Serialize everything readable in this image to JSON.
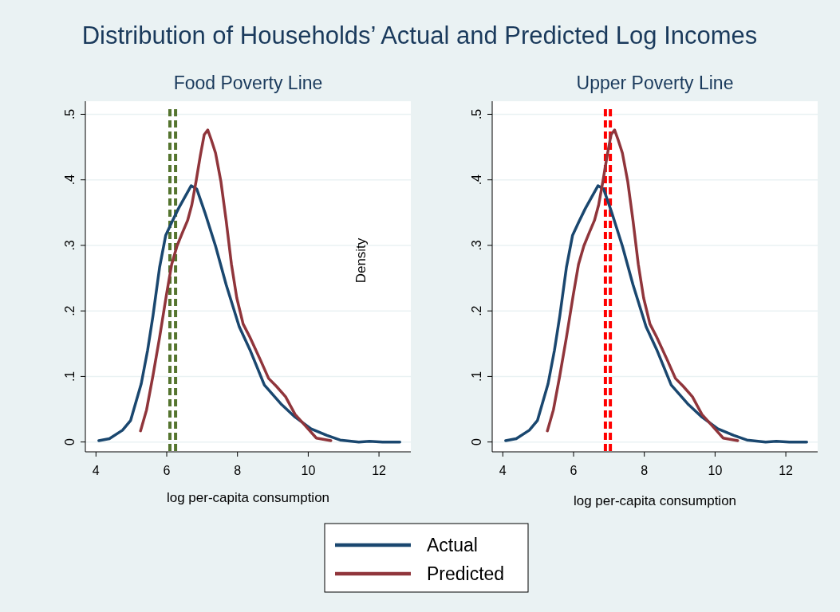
{
  "chart_data": [
    {
      "type": "line",
      "title": "Distribution of Households’ Actual and Predicted Log Incomes",
      "subtitle": "Food Poverty Line",
      "xlabel": "log per-capita consumption",
      "xlim": [
        3.7,
        12.9
      ],
      "xticks": [
        4,
        6,
        8,
        10,
        12
      ],
      "ylim": [
        -0.015,
        0.52
      ],
      "yticks": [
        0,
        {
          "value": 0.1,
          "label": ".1"
        },
        {
          "value": 0.2,
          "label": ".2"
        },
        {
          "value": 0.3,
          "label": ".3"
        },
        {
          "value": 0.4,
          "label": ".4"
        },
        {
          "value": 0.5,
          "label": ".5"
        }
      ],
      "grid": "y",
      "legend": "bottom",
      "line_style": "solid",
      "marker": "none",
      "series": [
        {
          "name": "Actual",
          "color": "#1a476f",
          "x": [
            4.08,
            4.38,
            4.75,
            4.98,
            5.13,
            5.28,
            5.46,
            5.61,
            5.8,
            5.97,
            6.14,
            6.33,
            6.69,
            6.85,
            7.08,
            7.38,
            7.68,
            8.05,
            8.35,
            8.76,
            9.25,
            9.63,
            10.08,
            10.53,
            10.9,
            11.43,
            11.73,
            12.1,
            12.59
          ],
          "values": [
            0.002,
            0.005,
            0.018,
            0.033,
            0.061,
            0.089,
            0.14,
            0.192,
            0.267,
            0.315,
            0.335,
            0.356,
            0.391,
            0.386,
            0.35,
            0.299,
            0.24,
            0.176,
            0.141,
            0.087,
            0.057,
            0.038,
            0.02,
            0.01,
            0.003,
            0,
            0.001,
            0,
            0
          ]
        },
        {
          "name": "Predicted",
          "color": "#90353b",
          "x": [
            5.26,
            5.43,
            5.61,
            5.8,
            5.99,
            6.14,
            6.29,
            6.44,
            6.59,
            6.71,
            6.83,
            6.95,
            7.06,
            7.16,
            7.26,
            7.38,
            7.53,
            7.68,
            7.83,
            7.98,
            8.16,
            8.35,
            8.65,
            8.88,
            9.1,
            9.36,
            9.63,
            9.93,
            10.23,
            10.64
          ],
          "values": [
            0.017,
            0.049,
            0.101,
            0.16,
            0.224,
            0.271,
            0.299,
            0.319,
            0.338,
            0.362,
            0.398,
            0.437,
            0.469,
            0.476,
            0.461,
            0.441,
            0.398,
            0.338,
            0.271,
            0.22,
            0.18,
            0.16,
            0.125,
            0.097,
            0.085,
            0.069,
            0.042,
            0.024,
            0.006,
            0.002
          ]
        }
      ],
      "ref_lines": [
        {
          "axis": "x",
          "value": 6.09,
          "color": "#55752f",
          "line_style": "dashed"
        },
        {
          "axis": "x",
          "value": 6.25,
          "color": "#55752f",
          "line_style": "dashed"
        }
      ]
    },
    {
      "type": "line",
      "subtitle": "Upper Poverty Line",
      "xlabel": "log per-capita consumption",
      "ylabel": "Density",
      "xlim": [
        3.7,
        12.9
      ],
      "xticks": [
        4,
        6,
        8,
        10,
        12
      ],
      "ylim": [
        -0.015,
        0.52
      ],
      "yticks": [
        0,
        {
          "value": 0.1,
          "label": ".1"
        },
        {
          "value": 0.2,
          "label": ".2"
        },
        {
          "value": 0.3,
          "label": ".3"
        },
        {
          "value": 0.4,
          "label": ".4"
        },
        {
          "value": 0.5,
          "label": ".5"
        }
      ],
      "grid": "y",
      "line_style": "solid",
      "marker": "none",
      "series": [
        {
          "color": "#1a476f",
          "x": [
            4.08,
            4.38,
            4.75,
            4.98,
            5.13,
            5.28,
            5.46,
            5.61,
            5.8,
            5.97,
            6.14,
            6.33,
            6.69,
            6.85,
            7.08,
            7.38,
            7.68,
            8.05,
            8.35,
            8.76,
            9.25,
            9.63,
            10.08,
            10.53,
            10.9,
            11.43,
            11.73,
            12.1,
            12.59
          ],
          "values": [
            0.002,
            0.005,
            0.018,
            0.033,
            0.061,
            0.089,
            0.14,
            0.192,
            0.267,
            0.315,
            0.335,
            0.356,
            0.391,
            0.386,
            0.35,
            0.299,
            0.24,
            0.176,
            0.141,
            0.087,
            0.057,
            0.038,
            0.02,
            0.01,
            0.003,
            0,
            0.001,
            0,
            0
          ]
        },
        {
          "color": "#90353b",
          "x": [
            5.26,
            5.43,
            5.61,
            5.8,
            5.99,
            6.14,
            6.29,
            6.44,
            6.59,
            6.71,
            6.83,
            6.95,
            7.06,
            7.16,
            7.26,
            7.38,
            7.53,
            7.68,
            7.83,
            7.98,
            8.16,
            8.35,
            8.65,
            8.88,
            9.1,
            9.36,
            9.63,
            9.93,
            10.23,
            10.64
          ],
          "values": [
            0.017,
            0.049,
            0.101,
            0.16,
            0.224,
            0.271,
            0.299,
            0.319,
            0.338,
            0.362,
            0.398,
            0.437,
            0.469,
            0.476,
            0.461,
            0.441,
            0.398,
            0.338,
            0.271,
            0.22,
            0.18,
            0.16,
            0.125,
            0.097,
            0.085,
            0.069,
            0.042,
            0.024,
            0.006,
            0.002
          ]
        }
      ],
      "ref_lines": [
        {
          "axis": "x",
          "value": 6.9,
          "color": "#ff0000",
          "line_style": "dashed"
        },
        {
          "axis": "x",
          "value": 7.04,
          "color": "#ff0000",
          "line_style": "dashed"
        }
      ]
    }
  ]
}
